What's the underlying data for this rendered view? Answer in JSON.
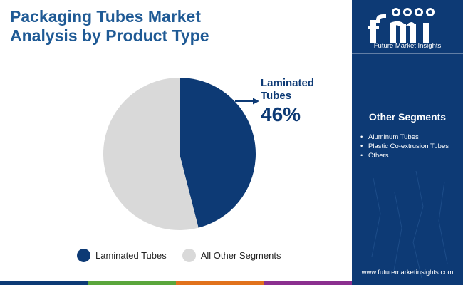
{
  "title_lines": [
    "Packaging Tubes Market",
    "Analysis by Product Type"
  ],
  "chart_data": {
    "type": "pie",
    "slices": [
      {
        "label": "Laminated Tubes",
        "value": 46,
        "color": "#0d3a75"
      },
      {
        "label": "All Other Segments",
        "value": 54,
        "color": "#d9d9d9"
      }
    ]
  },
  "callout": {
    "label_lines": [
      "Laminated",
      "Tubes"
    ],
    "value_text": "46%"
  },
  "legend": [
    {
      "label": "Laminated Tubes",
      "color": "#0d3a75"
    },
    {
      "label": "All Other Segments",
      "color": "#d9d9d9"
    }
  ],
  "sidebar": {
    "brand_caption": "Future Market Insights",
    "segments_title": "Other Segments",
    "segments": [
      "Aluminum Tubes",
      "Plastic Co-extrusion Tubes",
      "Others"
    ],
    "website": "www.futuremarketinsights.com"
  },
  "bottom_bar_colors": [
    "#0d3a75",
    "#5aa63c",
    "#e1721c",
    "#8b2f8f"
  ]
}
